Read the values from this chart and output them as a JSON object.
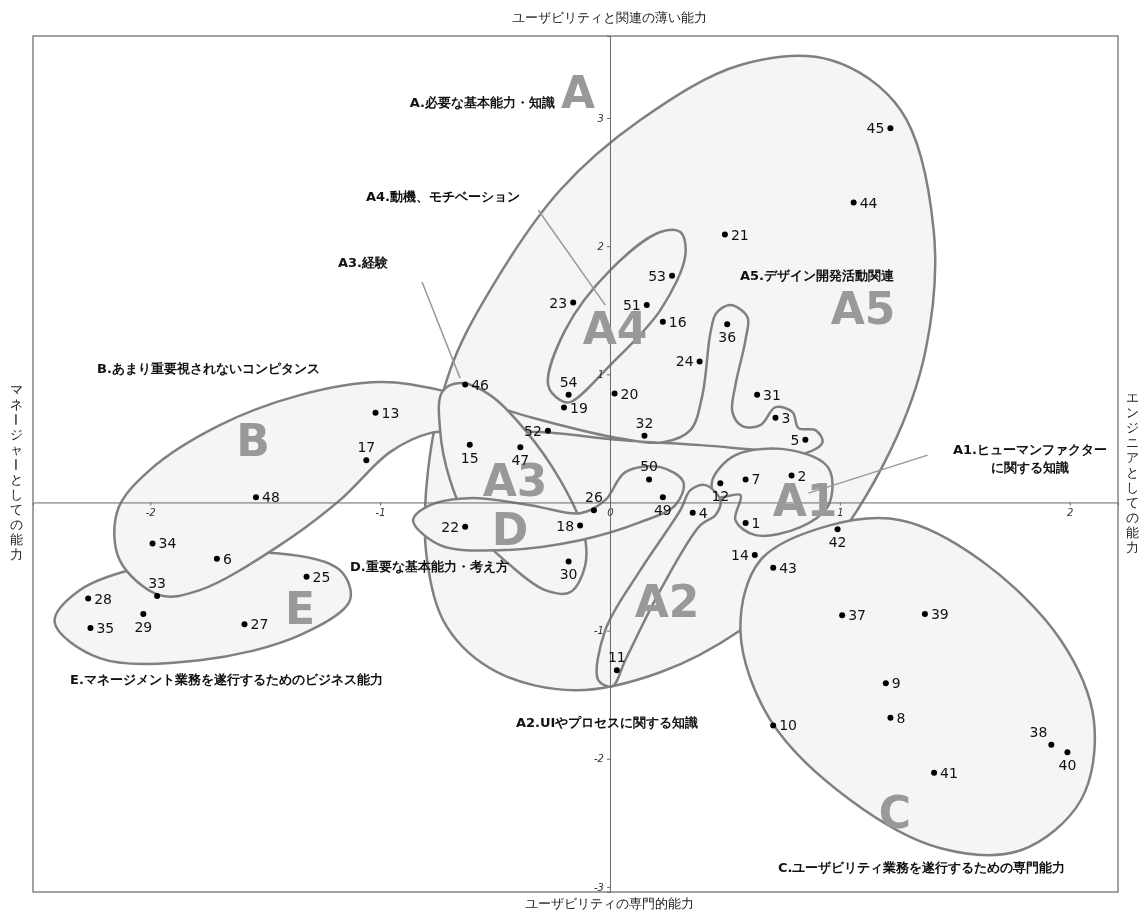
{
  "chart_data": {
    "type": "scatter",
    "xlabel": "ユーザビリティの専門的能力",
    "x2label": "ユーザビリティと関連の薄い能力",
    "ylabel": "マネージャーとしての能力",
    "y2label": "エンジニアとしての能力",
    "xlim": [
      -2.51,
      2.21
    ],
    "ylim": [
      -3.04,
      3.64
    ],
    "xticks": [
      -2,
      -1,
      0,
      1,
      2
    ],
    "yticks": [
      -3,
      -2,
      -1,
      1,
      2,
      3
    ],
    "marker": "circle",
    "series": [
      {
        "color": "#000000",
        "x": [
          0.59,
          0.79,
          0.72,
          0.36,
          0.85,
          -1.71,
          0.59,
          1.22,
          1.2,
          0.71,
          0.03,
          0.48,
          -1.02,
          0.63,
          -0.61,
          0.23,
          -1.06,
          -0.13,
          -0.2,
          0.02,
          0.5,
          -0.63,
          -0.16,
          0.39,
          -1.32,
          -0.07,
          -1.59,
          -2.27,
          -2.03,
          -0.18,
          0.64,
          0.15,
          -1.97,
          -1.99,
          -2.26,
          0.51,
          1.01,
          1.92,
          1.37,
          1.99,
          1.41,
          0.99,
          0.71,
          1.06,
          1.22,
          -0.63,
          -0.39,
          -1.54,
          0.23,
          0.17,
          0.16,
          -0.27,
          0.27,
          -0.18
        ],
        "values": [
          -0.16,
          0.21,
          0.66,
          -0.08,
          0.49,
          -0.44,
          0.18,
          -1.68,
          -1.41,
          -1.74,
          -1.31,
          0.15,
          0.7,
          -0.41,
          0.45,
          1.41,
          0.33,
          -0.18,
          0.74,
          0.85,
          2.09,
          -0.19,
          1.56,
          1.1,
          -0.58,
          -0.06,
          -0.95,
          -0.75,
          -0.87,
          -0.46,
          0.84,
          0.52,
          -0.73,
          -0.32,
          -0.98,
          1.39,
          -0.88,
          -1.89,
          -0.87,
          -1.95,
          -2.11,
          -0.21,
          -0.51,
          2.34,
          2.92,
          0.92,
          0.43,
          0.04,
          0.04,
          0.18,
          1.54,
          0.56,
          1.77,
          0.84
        ]
      }
    ],
    "annotations": [
      "A.必要な基本能力・知識",
      "A",
      "A4.動機、モチベーション",
      "A4",
      "A3.経験",
      "A3",
      "B.あまり重要視されないコンピタンス",
      "B",
      "A5.デザイン開発活動関連",
      "A5",
      "A1.ヒューマンファクターに関する知識",
      "A1",
      "D.重要な基本能力・考え方",
      "D",
      "E.マネージメント業務を遂行するためのビジネス能力",
      "E",
      "A2.UIやプロセスに関する知識",
      "A2",
      "C.ユーザビリティ業務を遂行するための専門能力",
      "C",
      {
        "text": "1",
        "x": 0.59,
        "y": -0.16
      },
      {
        "text": "2",
        "x": 0.79,
        "y": 0.21
      },
      {
        "text": "3",
        "x": 0.72,
        "y": 0.66
      },
      {
        "text": "4",
        "x": 0.36,
        "y": -0.08
      },
      {
        "text": "5",
        "x": 0.85,
        "y": 0.49
      },
      {
        "text": "6",
        "x": -1.71,
        "y": -0.44
      },
      {
        "text": "7",
        "x": 0.59,
        "y": 0.18
      },
      {
        "text": "8",
        "x": 1.22,
        "y": -1.68
      },
      {
        "text": "9",
        "x": 1.2,
        "y": -1.41
      },
      {
        "text": "10",
        "x": 0.71,
        "y": -1.74
      },
      {
        "text": "11",
        "x": 0.03,
        "y": -1.31
      },
      {
        "text": "12",
        "x": 0.48,
        "y": 0.15
      },
      {
        "text": "13",
        "x": -1.02,
        "y": 0.7
      },
      {
        "text": "14",
        "x": 0.63,
        "y": -0.41
      },
      {
        "text": "15",
        "x": -0.61,
        "y": 0.45
      },
      {
        "text": "16",
        "x": 0.23,
        "y": 1.41
      },
      {
        "text": "17",
        "x": -1.06,
        "y": 0.33
      },
      {
        "text": "18",
        "x": -0.13,
        "y": -0.18
      },
      {
        "text": "19",
        "x": -0.2,
        "y": 0.74
      },
      {
        "text": "20",
        "x": 0.02,
        "y": 0.85
      },
      {
        "text": "21",
        "x": 0.5,
        "y": 2.09
      },
      {
        "text": "22",
        "x": -0.63,
        "y": -0.19
      },
      {
        "text": "23",
        "x": -0.16,
        "y": 1.56
      },
      {
        "text": "24",
        "x": 0.39,
        "y": 1.1
      },
      {
        "text": "25",
        "x": -1.32,
        "y": -0.58
      },
      {
        "text": "26",
        "x": -0.07,
        "y": -0.06
      },
      {
        "text": "27",
        "x": -1.59,
        "y": -0.95
      },
      {
        "text": "28",
        "x": -2.27,
        "y": -0.75
      },
      {
        "text": "29",
        "x": -2.03,
        "y": -0.87
      },
      {
        "text": "30",
        "x": -0.18,
        "y": -0.46
      },
      {
        "text": "31",
        "x": 0.64,
        "y": 0.84
      },
      {
        "text": "32",
        "x": 0.15,
        "y": 0.52
      },
      {
        "text": "33",
        "x": -1.97,
        "y": -0.73
      },
      {
        "text": "34",
        "x": -1.99,
        "y": -0.32
      },
      {
        "text": "35",
        "x": -2.26,
        "y": -0.98
      },
      {
        "text": "36",
        "x": 0.51,
        "y": 1.39
      },
      {
        "text": "37",
        "x": 1.01,
        "y": -0.88
      },
      {
        "text": "38",
        "x": 1.92,
        "y": -1.89
      },
      {
        "text": "39",
        "x": 1.37,
        "y": -0.87
      },
      {
        "text": "40",
        "x": 1.99,
        "y": -1.95
      },
      {
        "text": "41",
        "x": 1.41,
        "y": -2.11
      },
      {
        "text": "42",
        "x": 0.99,
        "y": -0.21
      },
      {
        "text": "43",
        "x": 0.71,
        "y": -0.51
      },
      {
        "text": "44",
        "x": 1.06,
        "y": 2.34
      },
      {
        "text": "45",
        "x": 1.22,
        "y": 2.92
      },
      {
        "text": "46",
        "x": -0.63,
        "y": 0.92
      },
      {
        "text": "47",
        "x": -0.39,
        "y": 0.43
      },
      {
        "text": "48",
        "x": -1.54,
        "y": 0.04
      },
      {
        "text": "49",
        "x": 0.23,
        "y": 0.04
      },
      {
        "text": "50",
        "x": 0.17,
        "y": 0.18
      },
      {
        "text": "51",
        "x": 0.16,
        "y": 1.54
      },
      {
        "text": "52",
        "x": -0.27,
        "y": 0.56
      },
      {
        "text": "53",
        "x": 0.27,
        "y": 1.77
      },
      {
        "text": "54",
        "x": -0.18,
        "y": 0.84
      }
    ]
  }
}
